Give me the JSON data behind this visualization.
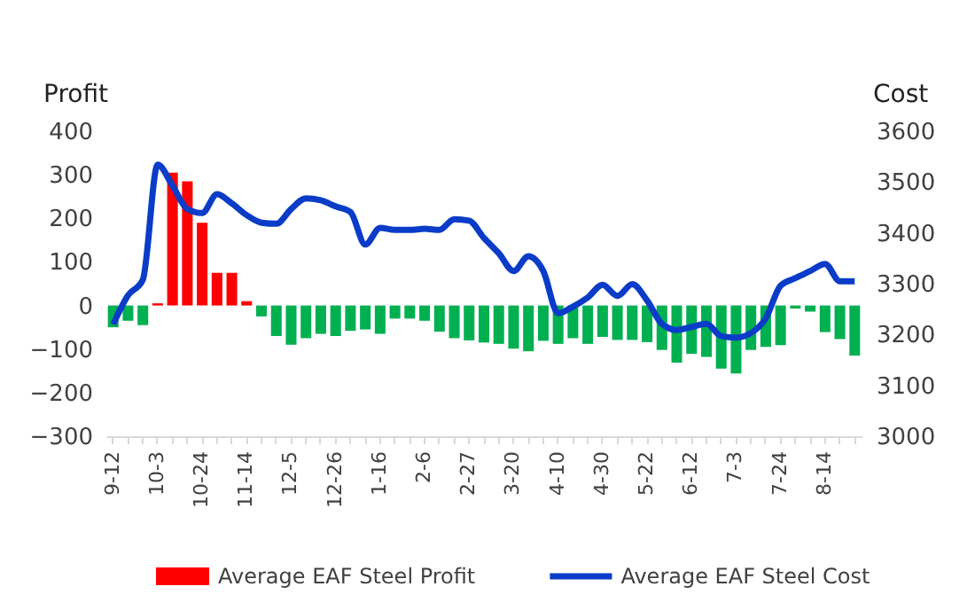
{
  "chart_data": {
    "type": "bar",
    "ylabel": "Profit",
    "y2label": "Cost",
    "categories": [
      "9-12",
      null,
      null,
      "10-3",
      null,
      null,
      "10-24",
      null,
      null,
      "11-14",
      null,
      null,
      "12-5",
      null,
      null,
      "12-26",
      null,
      null,
      "1-16",
      null,
      null,
      "2-6",
      null,
      null,
      "2-27",
      null,
      null,
      "3-20",
      null,
      null,
      "4-10",
      null,
      null,
      "4-30",
      null,
      null,
      "5-22",
      null,
      null,
      "6-12",
      null,
      null,
      "7-3",
      null,
      null,
      "7-24",
      null,
      null,
      "8-14",
      null,
      null
    ],
    "series": [
      {
        "name": "Average EAF Steel Profit",
        "color": "#ff0000",
        "colors": [
          "#00b050",
          "#00b050",
          "#00b050",
          "#ff0000",
          "#ff0000",
          "#ff0000",
          "#ff0000",
          "#ff0000",
          "#ff0000",
          "#ff0000",
          "#00b050",
          "#00b050",
          "#00b050",
          "#00b050",
          "#00b050",
          "#00b050",
          "#00b050",
          "#00b050",
          "#00b050",
          "#00b050",
          "#00b050",
          "#00b050",
          "#00b050",
          "#00b050",
          "#00b050",
          "#00b050",
          "#00b050",
          "#00b050",
          "#00b050",
          "#00b050",
          "#00b050",
          "#00b050",
          "#00b050",
          "#00b050",
          "#00b050",
          "#00b050",
          "#00b050",
          "#00b050",
          "#00b050",
          "#00b050",
          "#00b050",
          "#00b050",
          "#00b050",
          "#00b050",
          "#00b050",
          "#00b050",
          "#00b050",
          "#00b050",
          "#00b050",
          "#00b050",
          "#00b050"
        ],
        "values": [
          -50,
          -35,
          -45,
          5,
          305,
          285,
          190,
          75,
          75,
          10,
          -25,
          -70,
          -90,
          -75,
          -65,
          -70,
          -58,
          -55,
          -65,
          -30,
          -30,
          -35,
          -60,
          -75,
          -80,
          -85,
          -88,
          -99,
          -105,
          -81,
          -88,
          -75,
          -88,
          -72,
          -79,
          -79,
          -84,
          -102,
          -131,
          -111,
          -118,
          -145,
          -156,
          -102,
          -95,
          -91,
          -7,
          -14,
          -61,
          -77,
          -115
        ]
      },
      {
        "name": "Average EAF Steel Cost",
        "type": "line",
        "axis": "y2",
        "color": "#0a3cc8",
        "values": [
          3220,
          3277,
          3308,
          3534,
          3493,
          3447,
          3439,
          3476,
          3458,
          3435,
          3420,
          3418,
          3447,
          3468,
          3464,
          3452,
          3441,
          3377,
          3410,
          3406,
          3406,
          3408,
          3406,
          3427,
          3424,
          3390,
          3360,
          3325,
          3354,
          3325,
          3242,
          3255,
          3273,
          3298,
          3276,
          3299,
          3267,
          3221,
          3209,
          3215,
          3221,
          3197,
          3194,
          3203,
          3232,
          3296,
          3311,
          3325,
          3339,
          3305,
          3305
        ]
      }
    ],
    "ylim": [
      -300,
      400
    ],
    "yticks": [
      -300,
      -200,
      -100,
      0,
      100,
      200,
      300,
      400
    ],
    "y2lim": [
      3000,
      3600
    ],
    "y2ticks": [
      3000,
      3100,
      3200,
      3300,
      3400,
      3500,
      3600
    ],
    "grid": false,
    "legend": "bottom",
    "marker": "none",
    "line_style": "solid"
  }
}
